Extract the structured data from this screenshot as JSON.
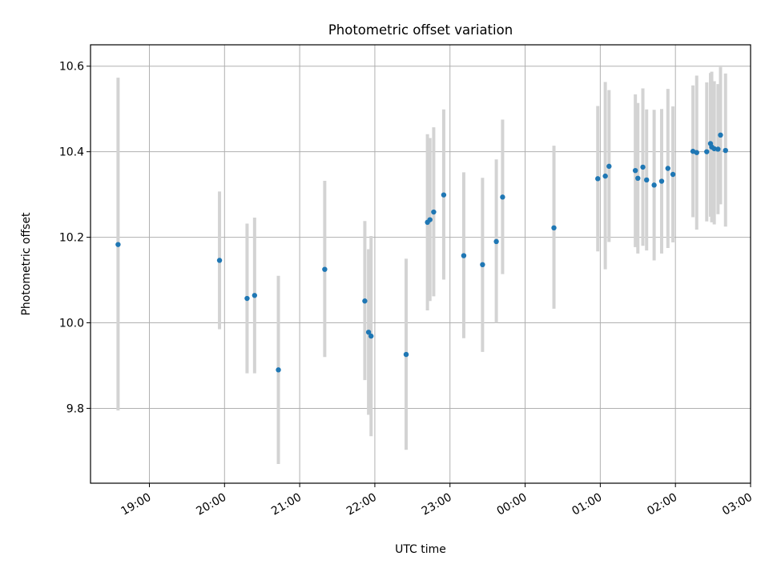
{
  "chart_data": {
    "type": "scatter",
    "title": "Photometric offset variation",
    "xlabel": "UTC time",
    "ylabel": "Photometric offset",
    "x_tick_labels": [
      "19:00",
      "20:00",
      "21:00",
      "22:00",
      "23:00",
      "00:00",
      "01:00",
      "02:00",
      "03:00"
    ],
    "y_tick_labels": [
      "9.8",
      "10.0",
      "10.2",
      "10.4",
      "10.6"
    ],
    "y_ticks": [
      9.8,
      10.0,
      10.2,
      10.4,
      10.6
    ],
    "xlim": [
      "18:13",
      "03:00"
    ],
    "ylim": [
      9.625,
      10.65
    ],
    "grid": true,
    "colors": {
      "point": "#1f77b4",
      "error_bar": "#d3d3d3"
    },
    "points": [
      {
        "x": "18:35",
        "y": 10.183,
        "lo": 9.795,
        "hi": 10.573
      },
      {
        "x": "19:56",
        "y": 10.146,
        "lo": 9.985,
        "hi": 10.307
      },
      {
        "x": "20:18",
        "y": 10.057,
        "lo": 9.882,
        "hi": 10.232
      },
      {
        "x": "20:24",
        "y": 10.064,
        "lo": 9.882,
        "hi": 10.246
      },
      {
        "x": "20:43",
        "y": 9.89,
        "lo": 9.67,
        "hi": 10.11
      },
      {
        "x": "21:20",
        "y": 10.125,
        "lo": 9.92,
        "hi": 10.332
      },
      {
        "x": "21:52",
        "y": 10.051,
        "lo": 9.866,
        "hi": 10.238
      },
      {
        "x": "21:55",
        "y": 9.978,
        "lo": 9.785,
        "hi": 10.172
      },
      {
        "x": "21:57",
        "y": 9.969,
        "lo": 9.735,
        "hi": 10.203
      },
      {
        "x": "22:25",
        "y": 9.926,
        "lo": 9.703,
        "hi": 10.15
      },
      {
        "x": "22:42",
        "y": 10.235,
        "lo": 10.029,
        "hi": 10.441
      },
      {
        "x": "22:44",
        "y": 10.241,
        "lo": 10.051,
        "hi": 10.432
      },
      {
        "x": "22:47",
        "y": 10.259,
        "lo": 10.062,
        "hi": 10.457
      },
      {
        "x": "22:55",
        "y": 10.299,
        "lo": 10.101,
        "hi": 10.499
      },
      {
        "x": "23:11",
        "y": 10.157,
        "lo": 9.964,
        "hi": 10.352
      },
      {
        "x": "23:26",
        "y": 10.136,
        "lo": 9.932,
        "hi": 10.339
      },
      {
        "x": "23:37",
        "y": 10.19,
        "lo": 10.0,
        "hi": 10.382
      },
      {
        "x": "23:42",
        "y": 10.294,
        "lo": 10.114,
        "hi": 10.475
      },
      {
        "x": "00:23",
        "y": 10.222,
        "lo": 10.033,
        "hi": 10.414
      },
      {
        "x": "00:58",
        "y": 10.337,
        "lo": 10.167,
        "hi": 10.507
      },
      {
        "x": "01:04",
        "y": 10.343,
        "lo": 10.125,
        "hi": 10.563
      },
      {
        "x": "01:07",
        "y": 10.366,
        "lo": 10.189,
        "hi": 10.544
      },
      {
        "x": "01:28",
        "y": 10.356,
        "lo": 10.177,
        "hi": 10.534
      },
      {
        "x": "01:30",
        "y": 10.338,
        "lo": 10.162,
        "hi": 10.514
      },
      {
        "x": "01:34",
        "y": 10.364,
        "lo": 10.18,
        "hi": 10.548
      },
      {
        "x": "01:37",
        "y": 10.334,
        "lo": 10.169,
        "hi": 10.499
      },
      {
        "x": "01:43",
        "y": 10.322,
        "lo": 10.146,
        "hi": 10.498
      },
      {
        "x": "01:49",
        "y": 10.331,
        "lo": 10.162,
        "hi": 10.5
      },
      {
        "x": "01:54",
        "y": 10.361,
        "lo": 10.175,
        "hi": 10.547
      },
      {
        "x": "01:58",
        "y": 10.347,
        "lo": 10.188,
        "hi": 10.506
      },
      {
        "x": "02:14",
        "y": 10.401,
        "lo": 10.247,
        "hi": 10.555
      },
      {
        "x": "02:17",
        "y": 10.398,
        "lo": 10.218,
        "hi": 10.578
      },
      {
        "x": "02:25",
        "y": 10.4,
        "lo": 10.237,
        "hi": 10.562
      },
      {
        "x": "02:28",
        "y": 10.419,
        "lo": 10.248,
        "hi": 10.584
      },
      {
        "x": "02:29",
        "y": 10.411,
        "lo": 10.235,
        "hi": 10.587
      },
      {
        "x": "02:31",
        "y": 10.407,
        "lo": 10.23,
        "hi": 10.565
      },
      {
        "x": "02:34",
        "y": 10.406,
        "lo": 10.254,
        "hi": 10.558
      },
      {
        "x": "02:36",
        "y": 10.439,
        "lo": 10.277,
        "hi": 10.598
      },
      {
        "x": "02:40",
        "y": 10.403,
        "lo": 10.225,
        "hi": 10.583
      }
    ]
  }
}
